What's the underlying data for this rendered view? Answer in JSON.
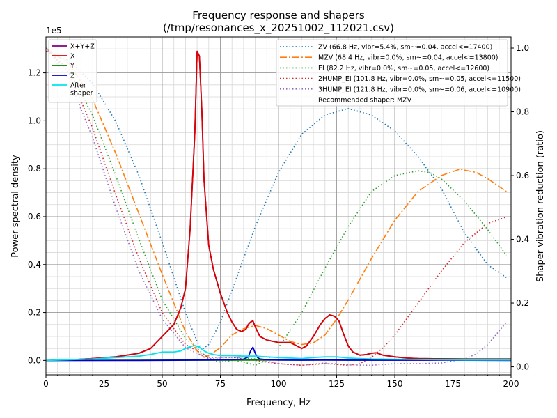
{
  "chart_data": {
    "type": "line",
    "title": "Frequency response and shapers",
    "subtitle": "(/tmp/resonances_x_20251002_112021.csv)",
    "xlabel": "Frequency, Hz",
    "ylabel": "Power spectral density",
    "y2label": "Shaper vibration reduction (ratio)",
    "y_offset_text": "1e5",
    "xlim": [
      0,
      200
    ],
    "ylim": [
      -0.06,
      1.35
    ],
    "y2lim": [
      -0.025,
      1.035
    ],
    "grid": true,
    "x_ticks": [
      0,
      25,
      50,
      75,
      100,
      125,
      150,
      175,
      200
    ],
    "x_tick_labels": [
      "0",
      "25",
      "50",
      "75",
      "100",
      "125",
      "150",
      "175",
      "200"
    ],
    "y_ticks": [
      0,
      0.2,
      0.4,
      0.6,
      0.8,
      1.0,
      1.2
    ],
    "y_tick_labels": [
      "0.0",
      "0.2",
      "0.4",
      "0.6",
      "0.8",
      "1.0",
      "1.2"
    ],
    "y2_ticks": [
      0,
      0.2,
      0.4,
      0.6,
      0.8,
      1.0
    ],
    "y2_tick_labels": [
      "0.0",
      "0.2",
      "0.4",
      "0.6",
      "0.8",
      "1.0"
    ],
    "psd_legend_position": "upper-left",
    "shaper_legend_position": "upper-right",
    "recommended_text": "Recommended shaper: MZV",
    "psd_series": [
      {
        "name": "X+Y+Z",
        "color": "#800080",
        "x": [
          0,
          10,
          20,
          30,
          40,
          45,
          50,
          55,
          58,
          60,
          62,
          64,
          65,
          66,
          67,
          68,
          70,
          72,
          75,
          78,
          80,
          82,
          84,
          86,
          87,
          88,
          89,
          90,
          92,
          95,
          100,
          105,
          108,
          110,
          112,
          115,
          118,
          120,
          122,
          124,
          126,
          128,
          130,
          132,
          135,
          138,
          140,
          142,
          145,
          150,
          155,
          160,
          170,
          180,
          190,
          200
        ],
        "y": [
          0,
          0.002,
          0.008,
          0.015,
          0.03,
          0.05,
          0.1,
          0.15,
          0.22,
          0.3,
          0.55,
          0.95,
          1.29,
          1.27,
          1.05,
          0.75,
          0.48,
          0.38,
          0.28,
          0.2,
          0.16,
          0.13,
          0.12,
          0.13,
          0.15,
          0.16,
          0.165,
          0.14,
          0.1,
          0.085,
          0.075,
          0.075,
          0.06,
          0.05,
          0.06,
          0.1,
          0.15,
          0.175,
          0.19,
          0.185,
          0.165,
          0.11,
          0.06,
          0.035,
          0.022,
          0.025,
          0.03,
          0.032,
          0.022,
          0.015,
          0.01,
          0.008,
          0.007,
          0.006,
          0.006,
          0.006
        ]
      },
      {
        "name": "X",
        "color": "#dd0000",
        "x": [
          0,
          10,
          20,
          30,
          40,
          45,
          50,
          55,
          58,
          60,
          62,
          64,
          65,
          66,
          67,
          68,
          70,
          72,
          75,
          78,
          80,
          82,
          84,
          86,
          87,
          88,
          89,
          90,
          92,
          95,
          100,
          105,
          108,
          110,
          112,
          115,
          118,
          120,
          122,
          124,
          126,
          128,
          130,
          132,
          135,
          138,
          140,
          142,
          145,
          150,
          155,
          160,
          170,
          180,
          190,
          200
        ],
        "y": [
          0,
          0.002,
          0.008,
          0.015,
          0.03,
          0.05,
          0.1,
          0.15,
          0.22,
          0.3,
          0.55,
          0.95,
          1.29,
          1.27,
          1.05,
          0.75,
          0.48,
          0.38,
          0.28,
          0.2,
          0.16,
          0.13,
          0.12,
          0.13,
          0.15,
          0.16,
          0.165,
          0.14,
          0.1,
          0.085,
          0.075,
          0.075,
          0.06,
          0.05,
          0.06,
          0.1,
          0.15,
          0.175,
          0.19,
          0.185,
          0.165,
          0.11,
          0.06,
          0.035,
          0.022,
          0.025,
          0.03,
          0.032,
          0.022,
          0.015,
          0.01,
          0.008,
          0.007,
          0.006,
          0.006,
          0.006
        ]
      },
      {
        "name": "Y",
        "color": "#008000",
        "x": [
          0,
          50,
          100,
          150,
          200
        ],
        "y": [
          0,
          0.001,
          0.002,
          0.002,
          0.003
        ]
      },
      {
        "name": "Z",
        "color": "#0000cc",
        "x": [
          0,
          20,
          40,
          60,
          70,
          80,
          85,
          87,
          88,
          89,
          90,
          91,
          92,
          95,
          100,
          110,
          120,
          130,
          150,
          170,
          200
        ],
        "y": [
          0,
          0.0,
          0.0,
          0.001,
          0.002,
          0.003,
          0.005,
          0.015,
          0.04,
          0.055,
          0.03,
          0.012,
          0.006,
          0.003,
          0.002,
          0.001,
          0.002,
          0.001,
          0.001,
          0.001,
          0.0
        ]
      },
      {
        "name": "After\nshaper",
        "color": "#00e5ee",
        "x": [
          0,
          10,
          20,
          30,
          40,
          45,
          50,
          55,
          58,
          60,
          62,
          64,
          66,
          68,
          70,
          72,
          75,
          80,
          85,
          90,
          95,
          100,
          105,
          110,
          115,
          120,
          125,
          130,
          135,
          140,
          150,
          160,
          170,
          180,
          190,
          200
        ],
        "y": [
          0,
          0.003,
          0.006,
          0.012,
          0.018,
          0.025,
          0.035,
          0.035,
          0.04,
          0.05,
          0.058,
          0.062,
          0.055,
          0.04,
          0.03,
          0.025,
          0.02,
          0.02,
          0.018,
          0.018,
          0.015,
          0.012,
          0.01,
          0.008,
          0.012,
          0.015,
          0.015,
          0.01,
          0.008,
          0.006,
          0.005,
          0.004,
          0.003,
          0.002,
          0.002,
          0.002
        ]
      }
    ],
    "shaper_series": [
      {
        "name": "ZV (66.8 Hz, vibr=5.4%, sm~=0.04, accel<=17400)",
        "color": "#1f77b4",
        "dash": "dotted",
        "x": [
          0,
          10,
          20,
          30,
          40,
          50,
          55,
          60,
          65,
          67,
          70,
          75,
          80,
          90,
          100,
          110,
          120,
          130,
          140,
          150,
          160,
          170,
          180,
          190,
          198
        ],
        "y": [
          0.99,
          0.96,
          0.89,
          0.77,
          0.6,
          0.39,
          0.28,
          0.17,
          0.08,
          0.054,
          0.07,
          0.14,
          0.24,
          0.44,
          0.61,
          0.73,
          0.79,
          0.81,
          0.79,
          0.74,
          0.66,
          0.56,
          0.42,
          0.32,
          0.28
        ]
      },
      {
        "name": "MZV (68.4 Hz, vibr=0.0%, sm~=0.04, accel<=13800)",
        "color": "#ff7f0e",
        "dash": "dashdot",
        "x": [
          0,
          10,
          20,
          30,
          40,
          50,
          55,
          60,
          65,
          68,
          70,
          75,
          80,
          85,
          90,
          95,
          100,
          105,
          110,
          115,
          120,
          125,
          130,
          140,
          150,
          160,
          170,
          178,
          185,
          190,
          198
        ],
        "y": [
          1.0,
          0.95,
          0.84,
          0.67,
          0.48,
          0.29,
          0.2,
          0.11,
          0.05,
          0.03,
          0.035,
          0.06,
          0.1,
          0.12,
          0.13,
          0.12,
          0.1,
          0.08,
          0.07,
          0.075,
          0.1,
          0.15,
          0.21,
          0.34,
          0.46,
          0.55,
          0.6,
          0.62,
          0.61,
          0.59,
          0.55
        ]
      },
      {
        "name": "EI (82.2 Hz, vibr=0.0%, sm~=0.05, accel<=12600)",
        "color": "#2ca02c",
        "dash": "dotted",
        "x": [
          0,
          10,
          20,
          30,
          40,
          50,
          60,
          70,
          75,
          80,
          85,
          90,
          95,
          100,
          110,
          120,
          130,
          140,
          150,
          160,
          165,
          170,
          180,
          190,
          198
        ],
        "y": [
          1.0,
          0.93,
          0.79,
          0.6,
          0.4,
          0.21,
          0.09,
          0.025,
          0.015,
          0.02,
          0.015,
          0.005,
          0.02,
          0.06,
          0.17,
          0.31,
          0.44,
          0.55,
          0.6,
          0.615,
          0.61,
          0.59,
          0.52,
          0.43,
          0.35
        ]
      },
      {
        "name": "2HUMP_EI (101.8 Hz, vibr=0.0%, sm~=0.05, accel<=11500)",
        "color": "#d62728",
        "dash": "dotted",
        "x": [
          0,
          10,
          20,
          30,
          40,
          50,
          60,
          70,
          80,
          90,
          100,
          110,
          120,
          130,
          135,
          140,
          145,
          150,
          160,
          170,
          180,
          190,
          198
        ],
        "y": [
          1.0,
          0.92,
          0.75,
          0.54,
          0.34,
          0.17,
          0.07,
          0.03,
          0.03,
          0.02,
          0.01,
          0.005,
          0.01,
          0.005,
          0.01,
          0.03,
          0.06,
          0.1,
          0.2,
          0.3,
          0.39,
          0.45,
          0.47
        ]
      },
      {
        "name": "3HUMP_EI (121.8 Hz, vibr=0.0%, sm~=0.06, accel<=10900)",
        "color": "#9467bd",
        "dash": "dotted",
        "x": [
          0,
          10,
          20,
          30,
          40,
          50,
          60,
          70,
          80,
          90,
          100,
          110,
          120,
          130,
          140,
          150,
          160,
          170,
          180,
          185,
          190,
          198
        ],
        "y": [
          1.0,
          0.9,
          0.72,
          0.5,
          0.3,
          0.15,
          0.06,
          0.025,
          0.03,
          0.025,
          0.01,
          0.005,
          0.012,
          0.006,
          0.005,
          0.01,
          0.01,
          0.012,
          0.025,
          0.04,
          0.07,
          0.14
        ]
      }
    ]
  }
}
